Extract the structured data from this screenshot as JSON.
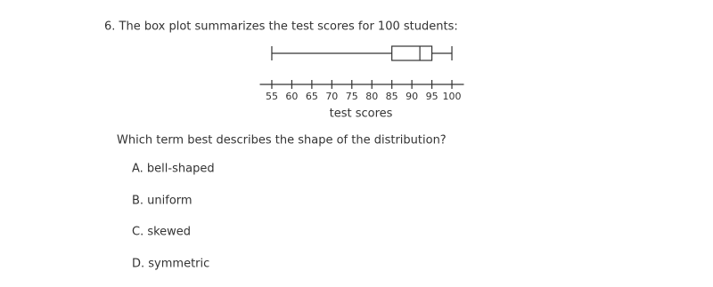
{
  "question": "6. The box plot summarizes the test scores for 100 students:",
  "chart_data": {
    "type": "box",
    "xlabel": "test scores",
    "min": 55,
    "q1": 85,
    "median": 92,
    "q3": 95,
    "max": 100,
    "xlim": [
      52,
      103
    ],
    "xticks": [
      55,
      60,
      65,
      70,
      75,
      80,
      85,
      90,
      95,
      100
    ]
  },
  "prompt": "Which term best describes the shape of the distribution?",
  "options": [
    "A. bell-shaped",
    "B. uniform",
    "C. skewed",
    "D. symmetric"
  ]
}
